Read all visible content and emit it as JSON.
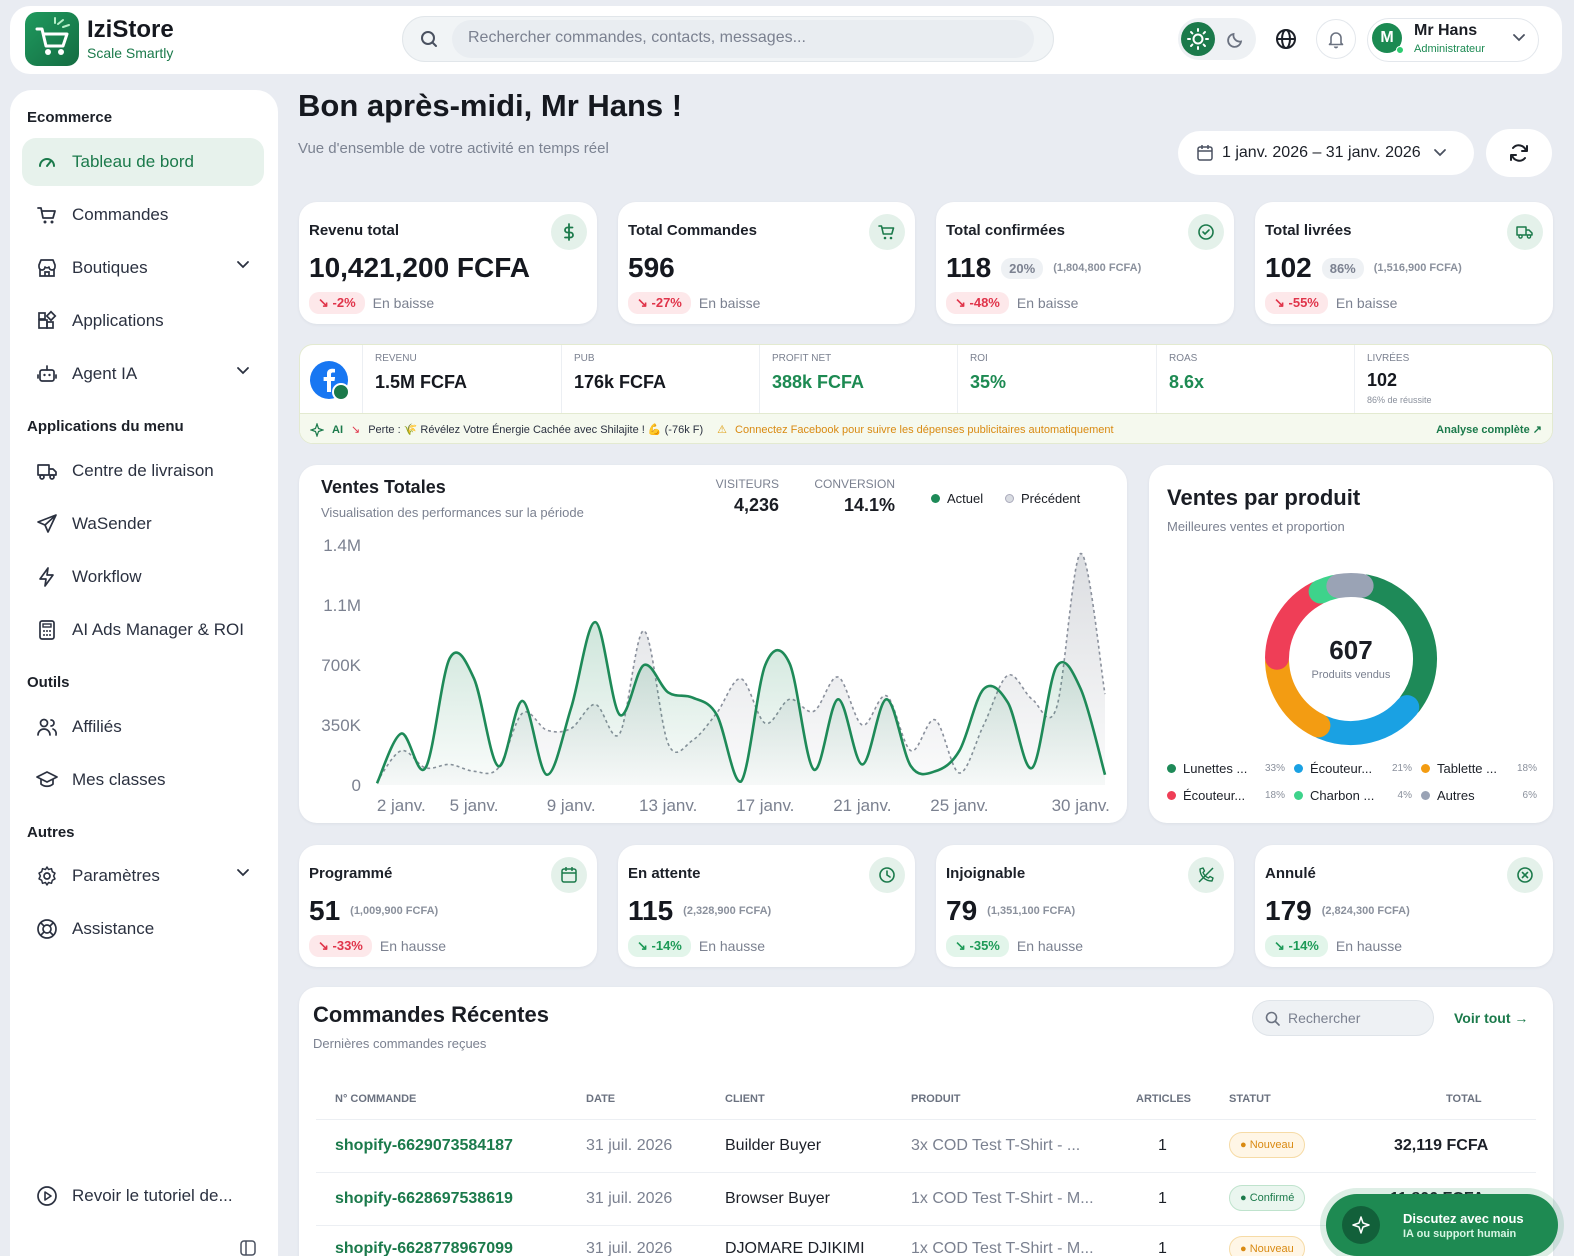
{
  "brand": {
    "name": "IziStore",
    "tagline": "Scale Smartly"
  },
  "search": {
    "placeholder": "Rechercher commandes, contacts, messages..."
  },
  "user": {
    "initial": "M",
    "name": "Mr Hans",
    "role": "Administrateur"
  },
  "sidebar": {
    "section_ecommerce": "Ecommerce",
    "items_ecommerce": [
      "Tableau de bord",
      "Commandes",
      "Boutiques",
      "Applications",
      "Agent IA"
    ],
    "section_menu_apps": "Applications du menu",
    "items_menu_apps": [
      "Centre de livraison",
      "WaSender",
      "Workflow",
      "AI Ads Manager & ROI"
    ],
    "section_tools": "Outils",
    "items_tools": [
      "Affiliés",
      "Mes classes"
    ],
    "section_other": "Autres",
    "items_other": [
      "Paramètres",
      "Assistance"
    ],
    "tutorial": "Revoir le tutoriel de..."
  },
  "greeting": {
    "title": "Bon après-midi, Mr Hans !",
    "subtitle": "Vue d'ensemble de votre activité en temps réel"
  },
  "date_range": "1 janv. 2026 – 31 janv. 2026",
  "kpis": [
    {
      "title": "Revenu total",
      "value": "10,421,200 FCFA",
      "pct": "",
      "amount": "",
      "trend": "-2%",
      "trend_label": "En baisse",
      "icon": "dollar-icon"
    },
    {
      "title": "Total Commandes",
      "value": "596",
      "pct": "",
      "amount": "",
      "trend": "-27%",
      "trend_label": "En baisse",
      "icon": "cart-icon"
    },
    {
      "title": "Total confirmées",
      "value": "118",
      "pct": "20%",
      "amount": "(1,804,800 FCFA)",
      "trend": "-48%",
      "trend_label": "En baisse",
      "icon": "check-circle-icon"
    },
    {
      "title": "Total livrées",
      "value": "102",
      "pct": "86%",
      "amount": "(1,516,900 FCFA)",
      "trend": "-55%",
      "trend_label": "En baisse",
      "icon": "truck-icon"
    }
  ],
  "fb": {
    "cells": [
      {
        "label": "REVENU",
        "value": "1.5M FCFA",
        "sub": ""
      },
      {
        "label": "PUB",
        "value": "176k FCFA",
        "sub": ""
      },
      {
        "label": "PROFIT NET",
        "value": "388k FCFA",
        "sub": ""
      },
      {
        "label": "ROI",
        "value": "35%",
        "sub": ""
      },
      {
        "label": "ROAS",
        "value": "8.6x",
        "sub": ""
      },
      {
        "label": "LIVRÉES",
        "value": "102",
        "sub": "86% de réussite"
      }
    ],
    "ai_label": "AI",
    "loss_text": "Perte : 🌾 Révélez Votre Énergie Cachée avec Shilajite ! 💪 (-76k F)",
    "warning": "Connectez Facebook pour suivre les dépenses publicitaires automatiquement",
    "analysis_link": "Analyse complète"
  },
  "sales": {
    "title": "Ventes Totales",
    "subtitle": "Visualisation des performances sur la période",
    "visitors_label": "VISITEURS",
    "visitors": "4,236",
    "conversion_label": "CONVERSION",
    "conversion": "14.1%",
    "legend_current": "Actuel",
    "legend_previous": "Précédent"
  },
  "chart_data": {
    "type": "area",
    "x": [
      "1 janv.",
      "2 janv.",
      "3 janv.",
      "4 janv.",
      "5 janv.",
      "6 janv.",
      "7 janv.",
      "8 janv.",
      "9 janv.",
      "10 janv.",
      "11 janv.",
      "12 janv.",
      "13 janv.",
      "14 janv.",
      "15 janv.",
      "16 janv.",
      "17 janv.",
      "18 janv.",
      "19 janv.",
      "20 janv.",
      "21 janv.",
      "22 janv.",
      "23 janv.",
      "24 janv.",
      "25 janv.",
      "26 janv.",
      "27 janv.",
      "28 janv.",
      "29 janv.",
      "30 janv.",
      "31 janv."
    ],
    "x_ticks": [
      "2 janv.",
      "5 janv.",
      "9 janv.",
      "13 janv.",
      "17 janv.",
      "21 janv.",
      "25 janv.",
      "30 janv."
    ],
    "y_ticks": [
      "0",
      "350K",
      "700K",
      "1.1M",
      "1.4M"
    ],
    "ylim": [
      0,
      1400000
    ],
    "series": [
      {
        "name": "Actuel",
        "values": [
          10000,
          300000,
          100000,
          740000,
          620000,
          110000,
          490000,
          60000,
          450000,
          950000,
          410000,
          700000,
          540000,
          510000,
          410000,
          20000,
          700000,
          710000,
          90000,
          500000,
          120000,
          500000,
          110000,
          80000,
          200000,
          560000,
          480000,
          100000,
          690000,
          560000,
          60000
        ]
      },
      {
        "name": "Précédent",
        "values": [
          20000,
          200000,
          100000,
          120000,
          80000,
          100000,
          420000,
          320000,
          330000,
          470000,
          300000,
          900000,
          240000,
          260000,
          420000,
          620000,
          360000,
          500000,
          430000,
          630000,
          350000,
          520000,
          200000,
          380000,
          70000,
          350000,
          640000,
          500000,
          450000,
          1350000,
          530000
        ]
      }
    ]
  },
  "products": {
    "title": "Ventes par produit",
    "subtitle": "Meilleures ventes et proportion",
    "total": "607",
    "total_label": "Produits vendus",
    "items": [
      {
        "name": "Lunettes ...",
        "pct": "33%",
        "value": 33,
        "color": "#1e8a58"
      },
      {
        "name": "Écouteur...",
        "pct": "21%",
        "value": 21,
        "color": "#1aa1e3"
      },
      {
        "name": "Tablette ...",
        "pct": "18%",
        "value": 18,
        "color": "#f39c12"
      },
      {
        "name": "Écouteur...",
        "pct": "18%",
        "value": 18,
        "color": "#ef3e57"
      },
      {
        "name": "Charbon ...",
        "pct": "4%",
        "value": 4,
        "color": "#3ed38b"
      },
      {
        "name": "Autres",
        "pct": "6%",
        "value": 6,
        "color": "#9aa3b5"
      }
    ]
  },
  "statuses": [
    {
      "title": "Programmé",
      "value": "51",
      "amount": "(1,009,900 FCFA)",
      "trend": "-33%",
      "trend_label": "En hausse",
      "good": false,
      "icon": "calendar-icon"
    },
    {
      "title": "En attente",
      "value": "115",
      "amount": "(2,328,900 FCFA)",
      "trend": "-14%",
      "trend_label": "En hausse",
      "good": true,
      "icon": "clock-icon"
    },
    {
      "title": "Injoignable",
      "value": "79",
      "amount": "(1,351,100 FCFA)",
      "trend": "-35%",
      "trend_label": "En hausse",
      "good": true,
      "icon": "phone-off-icon"
    },
    {
      "title": "Annulé",
      "value": "179",
      "amount": "(2,824,300 FCFA)",
      "trend": "-14%",
      "trend_label": "En hausse",
      "good": true,
      "icon": "x-circle-icon"
    }
  ],
  "orders": {
    "title": "Commandes Récentes",
    "subtitle": "Dernières commandes reçues",
    "search_placeholder": "Rechercher",
    "see_all": "Voir tout →",
    "columns": [
      "N° COMMANDE",
      "DATE",
      "CLIENT",
      "PRODUIT",
      "ARTICLES",
      "STATUT",
      "TOTAL"
    ],
    "rows": [
      {
        "id": "shopify-6629073584187",
        "date": "31 juil. 2026",
        "client": "Builder Buyer",
        "product": "3x COD Test T-Shirt - ...",
        "articles": "1",
        "status": "Nouveau",
        "total": "32,119 FCFA"
      },
      {
        "id": "shopify-6628697538619",
        "date": "31 juil. 2026",
        "client": "Browser Buyer",
        "product": "1x COD Test T-Shirt - M...",
        "articles": "1",
        "status": "Confirmé",
        "total": "11,806 FCFA"
      },
      {
        "id": "shopify-6628778967099",
        "date": "31 juil. 2026",
        "client": "DJOMARE DJIKIMI",
        "product": "1x COD Test T-Shirt - M...",
        "articles": "1",
        "status": "Nouveau",
        "total": ""
      }
    ]
  },
  "chat": {
    "line1": "Discutez avec nous",
    "line2": "IA ou support humain"
  },
  "colors": {
    "primary": "#1b7a4b",
    "accent_light": "#e7f2ec",
    "danger": "#e0344a"
  }
}
